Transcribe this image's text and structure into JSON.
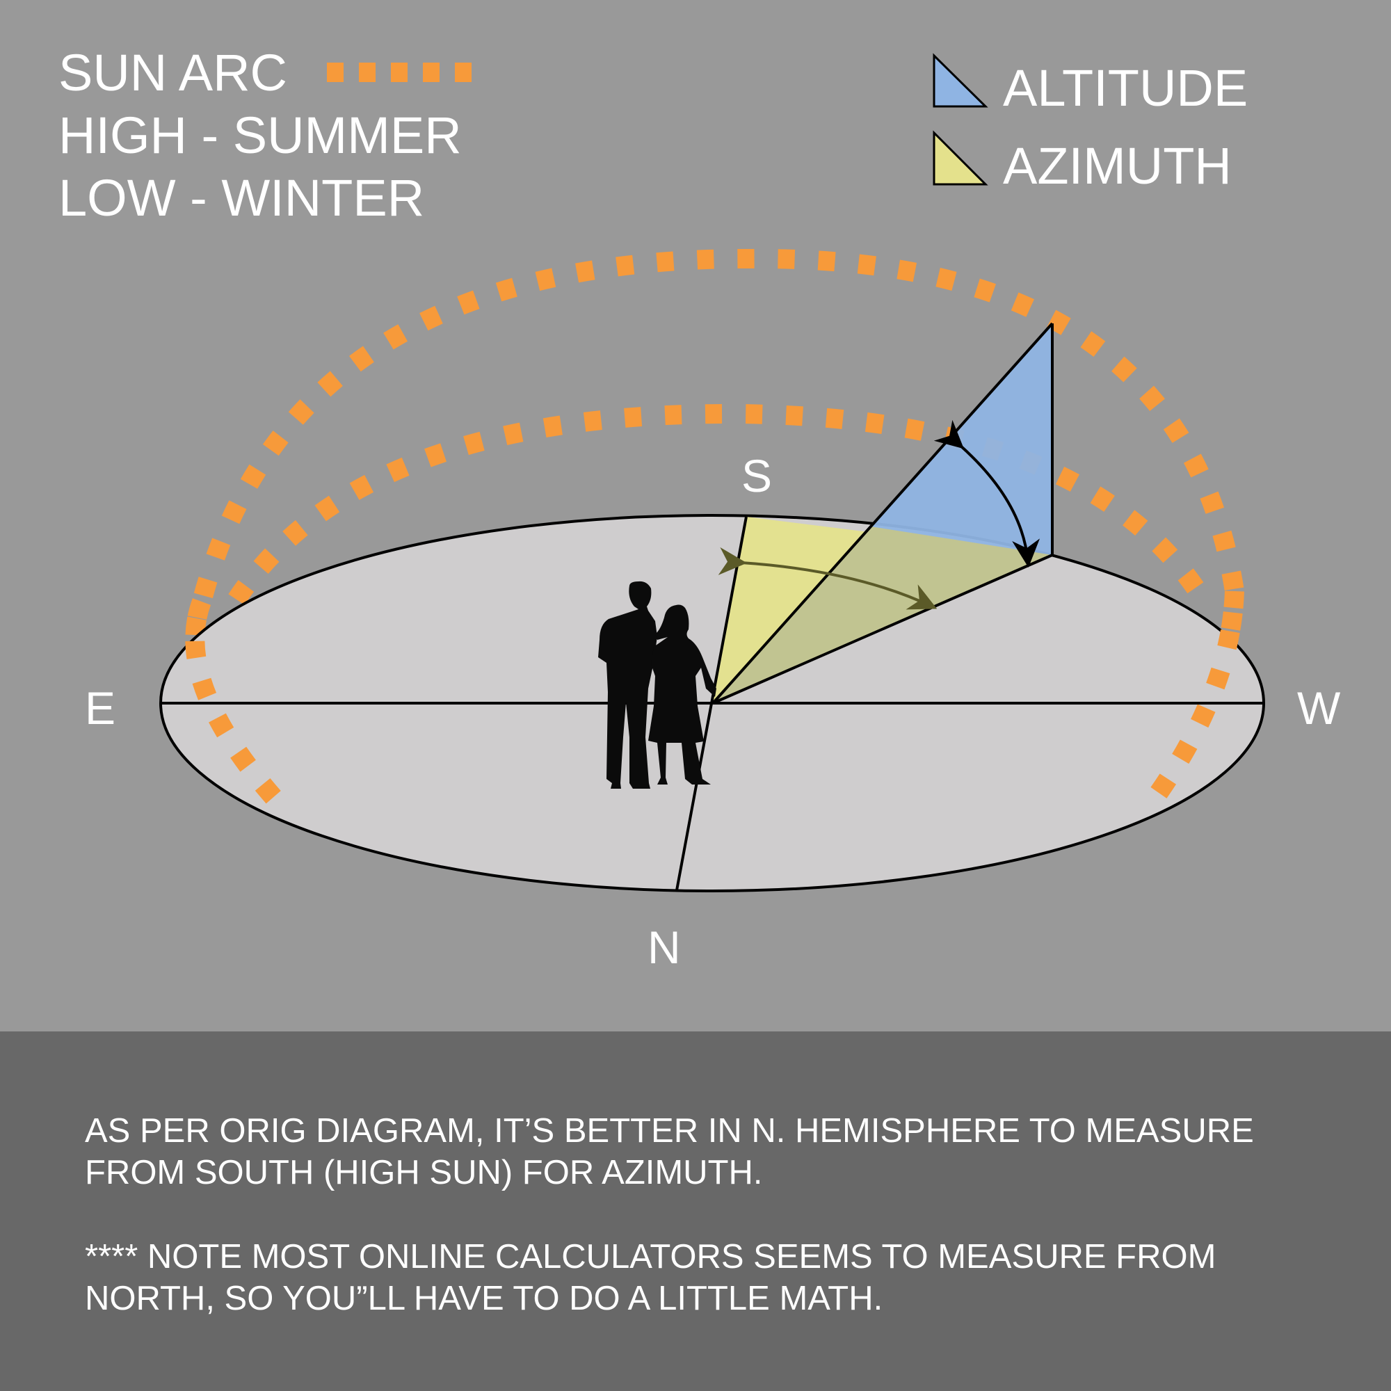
{
  "legend_left": {
    "line1": "SUN ARC",
    "line2": "HIGH - SUMMER",
    "line3": "LOW - WINTER"
  },
  "legend_right": {
    "altitude": "ALTITUDE",
    "azimuth": "AZIMUTH"
  },
  "compass": {
    "east": "E",
    "west": "W",
    "south": "S",
    "north": "N"
  },
  "caption": {
    "p1_line1": "AS PER ORIG DIAGRAM, IT’S BETTER IN N. HEMISPHERE TO MEASURE",
    "p1_line2": "FROM SOUTH (HIGH SUN) FOR AZIMUTH.",
    "p2_line1": "**** NOTE MOST ONLINE CALCULATORS SEEMS TO MEASURE FROM",
    "p2_line2": "NORTH, SO YOU”LL HAVE TO DO A LITTLE MATH."
  },
  "colors": {
    "background": "#999999",
    "caption_background": "#686868",
    "ground": "#cfcdce",
    "sun_arc": "#f79a3a",
    "altitude": "#8fb4e3",
    "azimuth": "#e4e18c",
    "azimuth_arrow": "#5b5a28"
  }
}
